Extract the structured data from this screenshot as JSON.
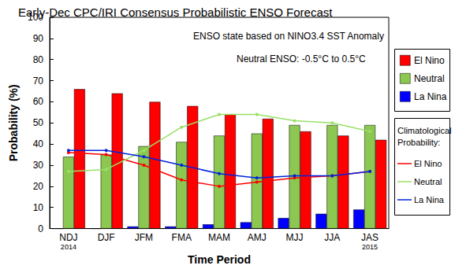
{
  "chart_data": {
    "type": "bar",
    "title": "Early-Dec CPC/IRI Consensus Probabilistic ENSO Forecast",
    "x_label": "Time Period",
    "y_label": "Probability (%)",
    "annotations": [
      "ENSO state based on NINO3.4 SST Anomaly",
      "Neutral ENSO: -0.5°C to 0.5°C"
    ],
    "legend_title": "Climatological\nProbability:",
    "categories": [
      "NDJ\n2014",
      "DJF",
      "JFM",
      "FMA",
      "MAM",
      "AMJ",
      "MJJ",
      "JJA",
      "JAS\n2015"
    ],
    "ylim": [
      0,
      100
    ],
    "yticks": [
      0,
      10,
      20,
      30,
      40,
      50,
      60,
      70,
      80,
      90,
      100
    ],
    "grid": false,
    "legend": "right",
    "series": [
      {
        "name": "El Nino",
        "type": "bar",
        "color": "#ff0000",
        "values": [
          66,
          64,
          60,
          58,
          54,
          52,
          46,
          44,
          42
        ]
      },
      {
        "name": "Neutral",
        "type": "bar",
        "color": "#8cc751",
        "values": [
          34,
          35,
          39,
          41,
          44,
          45,
          49,
          49,
          49
        ]
      },
      {
        "name": "La Nina",
        "type": "bar",
        "color": "#0000ff",
        "values": [
          0,
          0,
          1,
          1,
          2,
          3,
          5,
          7,
          9
        ]
      },
      {
        "name": "El Nino",
        "type": "line",
        "marker": "circle",
        "color": "#ff0000",
        "values": [
          36,
          35,
          30,
          23,
          20,
          22,
          24,
          25,
          27
        ]
      },
      {
        "name": "Neutral",
        "type": "line",
        "marker": "circle",
        "color": "#99e066",
        "values": [
          27,
          28,
          37,
          48,
          54,
          54,
          51,
          50,
          46
        ]
      },
      {
        "name": "La Nina",
        "type": "line",
        "marker": "circle",
        "color": "#0022dd",
        "values": [
          37,
          37,
          34,
          30,
          26,
          24,
          25,
          25,
          27
        ]
      }
    ]
  }
}
